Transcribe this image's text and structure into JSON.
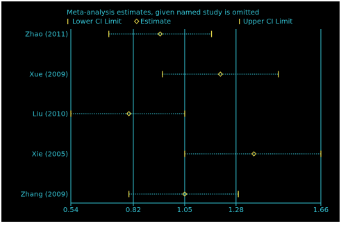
{
  "chart_data": {
    "type": "forest",
    "title": "Meta-analysis estimates, given named study is omitted",
    "legend": {
      "placement": "top-left",
      "entries": [
        "Lower CI Limit",
        "Estimate",
        "Upper CI Limit"
      ]
    },
    "xlim": [
      0.54,
      1.66
    ],
    "xticks": [
      "0.54",
      "0.82",
      "1.05",
      "1.28",
      "1.66"
    ],
    "tick_values": [
      0.54,
      0.82,
      1.05,
      1.28,
      1.66
    ],
    "reference_lines": [
      0.82,
      1.05,
      1.28
    ],
    "studies": [
      {
        "label": "Zhao (2011)",
        "lower": 0.71,
        "estimate": 0.94,
        "upper": 1.17
      },
      {
        "label": "Xue (2009)",
        "lower": 0.95,
        "estimate": 1.21,
        "upper": 1.47
      },
      {
        "label": "Liu (2010)",
        "lower": 0.54,
        "estimate": 0.8,
        "upper": 1.05
      },
      {
        "label": "Xie (2005)",
        "lower": 1.05,
        "estimate": 1.36,
        "upper": 1.66
      },
      {
        "label": "Zhang (2009)",
        "lower": 0.8,
        "estimate": 1.05,
        "upper": 1.29
      }
    ],
    "colors": {
      "background": "#000000",
      "text": "#34c3d4",
      "lines": "#34c3d4",
      "limits": "#e8d84a",
      "estimate": "#e8d84a"
    }
  }
}
